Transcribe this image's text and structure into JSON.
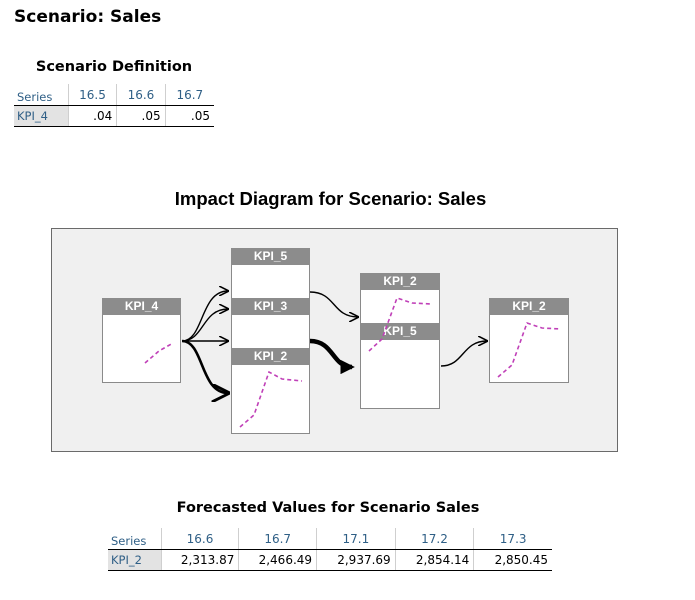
{
  "page": {
    "title": "Scenario: Sales"
  },
  "definition": {
    "caption": "Scenario Definition",
    "series_header": "Series",
    "columns": [
      "16.5",
      "16.6",
      "16.7"
    ],
    "row": {
      "series": "KPI_4",
      "values": [
        ".04",
        ".05",
        ".05"
      ]
    }
  },
  "diagram": {
    "title": "Impact Diagram for Scenario: Sales",
    "nodes": {
      "kpi4": "KPI_4",
      "kpi5_top": "KPI_5",
      "kpi3": "KPI_3",
      "kpi2_mid": "KPI_2",
      "kpi2_group": "KPI_2",
      "kpi5_group": "KPI_5",
      "kpi2_out": "KPI_2"
    },
    "colors": {
      "sparkline": "#c040b8",
      "node_header": "#8c8c8c",
      "arrow": "#000000"
    }
  },
  "forecast": {
    "caption": "Forecasted Values for Scenario Sales",
    "series_header": "Series",
    "columns": [
      "16.6",
      "16.7",
      "17.1",
      "17.2",
      "17.3"
    ],
    "row": {
      "series": "KPI_2",
      "values": [
        "2,313.87",
        "2,466.49",
        "2,937.69",
        "2,854.14",
        "2,850.45"
      ]
    }
  }
}
